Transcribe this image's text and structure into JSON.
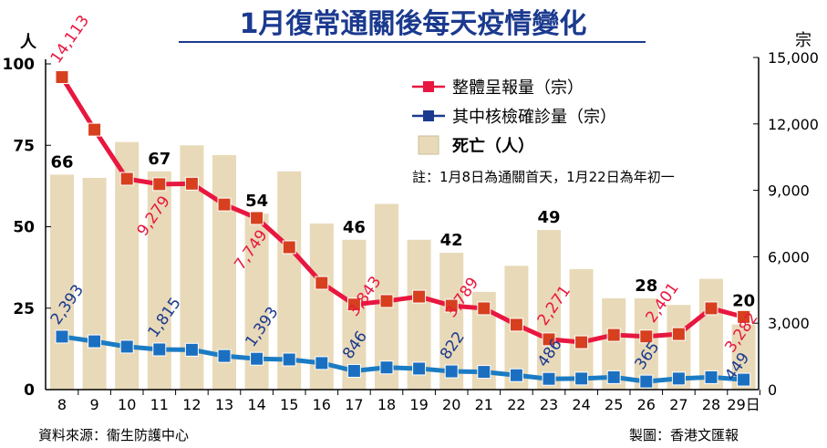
{
  "chart_data": {
    "type": "bar+line",
    "title": "1月復常通關後每天疫情變化",
    "categories": [
      "8",
      "9",
      "10",
      "11",
      "12",
      "13",
      "14",
      "15",
      "16",
      "17",
      "18",
      "19",
      "20",
      "21",
      "22",
      "23",
      "24",
      "25",
      "26",
      "27",
      "28",
      "29日"
    ],
    "left_axis": {
      "unit": "人",
      "ylim": [
        0,
        100
      ],
      "ticks": [
        "0",
        "25",
        "50",
        "75",
        "100"
      ]
    },
    "right_axis": {
      "unit": "宗",
      "ylim": [
        0,
        15000
      ],
      "ticks": [
        "0",
        "3,000",
        "6,000",
        "9,000",
        "12,000",
        "15,000"
      ]
    },
    "bars": {
      "name": "死亡（人）",
      "axis": "left",
      "color": "#e8d9b8",
      "values": [
        66,
        65,
        76,
        67,
        75,
        72,
        54,
        67,
        51,
        46,
        57,
        46,
        42,
        30,
        38,
        49,
        37,
        28,
        28,
        26,
        34,
        20
      ],
      "labels": {
        "0": "66",
        "3": "67",
        "6": "54",
        "9": "46",
        "12": "42",
        "15": "49",
        "18": "28",
        "21": "20"
      }
    },
    "series": [
      {
        "name": "整體呈報量（宗）",
        "axis": "right",
        "line_color": "#e8173f",
        "marker_color": "#d6401e",
        "label_color": "#e8173f",
        "values": [
          14113,
          11740,
          9520,
          9279,
          9300,
          8360,
          7749,
          6430,
          4820,
          3843,
          4000,
          4200,
          3789,
          3670,
          2930,
          2271,
          2140,
          2470,
          2401,
          2510,
          3670,
          3282
        ],
        "labels": {
          "0": "14,113",
          "3": "9,279",
          "6": "7,749",
          "9": "3,843",
          "12": "3,789",
          "15": "2,271",
          "18": "2,401",
          "21": "3,282"
        }
      },
      {
        "name": "其中核檢確診量（宗）",
        "axis": "right",
        "line_color": "#1b7cc4",
        "marker_color": "#1b6fc0",
        "label_color": "#1b3a8f",
        "values": [
          2393,
          2180,
          1940,
          1815,
          1800,
          1520,
          1393,
          1360,
          1200,
          846,
          1000,
          950,
          822,
          800,
          650,
          486,
          500,
          560,
          365,
          500,
          560,
          449
        ],
        "labels": {
          "0": "2,393",
          "3": "1,815",
          "6": "1,393",
          "9": "846",
          "12": "822",
          "15": "486",
          "18": "365",
          "21": "449"
        }
      }
    ],
    "note": "註：1月8日為通關首天，1月22日為年初一",
    "legend_placement": "top-right",
    "grid": false
  },
  "footer": {
    "source": "資料來源：衞生防護中心",
    "credit": "製圖：香港文匯報"
  }
}
